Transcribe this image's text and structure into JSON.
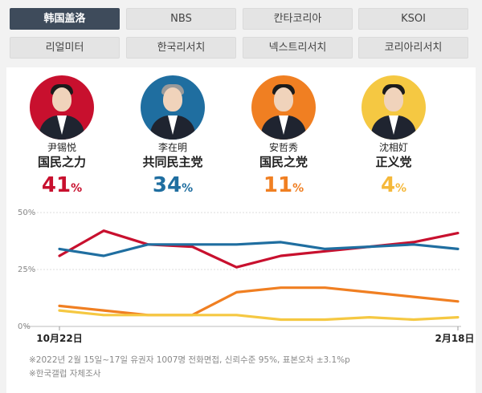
{
  "tabs": [
    {
      "label": "韩国盖洛",
      "active": true
    },
    {
      "label": "NBS",
      "active": false
    },
    {
      "label": "칸타코리아",
      "active": false
    },
    {
      "label": "KSOI",
      "active": false
    },
    {
      "label": "리얼미터",
      "active": false
    },
    {
      "label": "한국리서치",
      "active": false
    },
    {
      "label": "넥스트리서치",
      "active": false
    },
    {
      "label": "코리아리서치",
      "active": false
    }
  ],
  "candidates": [
    {
      "name": "尹锡悦",
      "party": "国民之力",
      "value": "41",
      "unit": "%",
      "color": "#c8102e",
      "bg": "#c8102e",
      "hair": "#1b1b1b"
    },
    {
      "name": "李在明",
      "party": "共同民主党",
      "value": "34",
      "unit": "%",
      "color": "#1f6ea0",
      "bg": "#1f6ea0",
      "hair": "#9a9a9a"
    },
    {
      "name": "安哲秀",
      "party": "国民之党",
      "value": "11",
      "unit": "%",
      "color": "#f07f22",
      "bg": "#f07f22",
      "hair": "#1b1b1b"
    },
    {
      "name": "沈相奵",
      "party": "正义党",
      "value": "4",
      "unit": "%",
      "color": "#f5b83a",
      "bg": "#f5c842",
      "hair": "#1b1b1b"
    }
  ],
  "chart_data": {
    "type": "line",
    "y_ticks": [
      "50%",
      "25%",
      "0%"
    ],
    "ylim": [
      0,
      50
    ],
    "x_start_label": "10月22日",
    "x_end_label": "2月18日",
    "series": [
      {
        "name": "尹锡悦",
        "color": "#c8102e",
        "values": [
          31,
          42,
          36,
          35,
          26,
          31,
          33,
          35,
          37,
          41
        ]
      },
      {
        "name": "李在明",
        "color": "#1f6ea0",
        "values": [
          34,
          31,
          36,
          36,
          36,
          37,
          34,
          35,
          36,
          34
        ]
      },
      {
        "name": "安哲秀",
        "color": "#f07f22",
        "values": [
          9,
          7,
          5,
          5,
          15,
          17,
          17,
          15,
          13,
          11
        ]
      },
      {
        "name": "沈相奵",
        "color": "#f5c842",
        "values": [
          7,
          5,
          5,
          5,
          5,
          3,
          3,
          4,
          3,
          4
        ]
      }
    ]
  },
  "notes": [
    "※2022년 2월 15일~17일 유권자 1007명 전화면접, 신뢰수준 95%, 표본오차 ±3.1%p",
    "※한국갤럽 자체조사"
  ]
}
